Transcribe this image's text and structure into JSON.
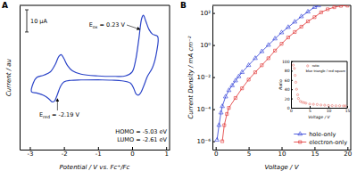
{
  "chart_data": [
    {
      "panel": "A",
      "type": "line",
      "x_label": "Potential / V vs. Fc⁺/Fc",
      "y_label": "Current / au",
      "xlim": [
        -3.3,
        1.1
      ],
      "xticks": [
        -3,
        -2,
        -1,
        0,
        1
      ],
      "ylim": [
        -32,
        33
      ],
      "tick_labels": "x",
      "scale_bar": {
        "value": 10,
        "label": "10 µA"
      },
      "series": [
        {
          "color": "#2b44c8",
          "x": [
            -1.0,
            -1.5,
            -1.8,
            -2.0,
            -2.1,
            -2.2,
            -2.28,
            -2.35,
            -2.45,
            -2.6,
            -2.8,
            -2.95,
            -2.9,
            -2.8,
            -2.6,
            -2.4,
            -2.25,
            -2.15,
            -2.08,
            -2.0,
            -1.9,
            -1.75,
            -1.5,
            -1.0,
            -0.5,
            -0.2,
            0.0,
            0.1,
            0.2,
            0.28,
            0.33,
            0.4,
            0.5,
            0.6,
            0.75,
            0.72,
            0.6,
            0.45,
            0.35,
            0.25,
            0.18,
            0.12,
            0.05,
            -0.05,
            -0.3,
            -0.6,
            -1.0
          ],
          "values": [
            -0.5,
            -0.6,
            -0.8,
            -1.5,
            -3.5,
            -7.5,
            -10.2,
            -10.5,
            -9.0,
            -7.5,
            -6.5,
            -6.0,
            -2.0,
            0.5,
            1.5,
            3.0,
            6.5,
            10.0,
            10.8,
            9.0,
            6.0,
            3.5,
            2.0,
            1.2,
            1.0,
            1.2,
            3.0,
            8.0,
            18.0,
            27.0,
            28.5,
            26.0,
            22.0,
            20.0,
            19.0,
            12.0,
            5.0,
            1.0,
            -3.0,
            -6.5,
            -7.5,
            -7.0,
            -4.5,
            -2.0,
            -1.0,
            -0.7,
            -0.5
          ]
        }
      ],
      "annotations": [
        {
          "main": "E",
          "sub": "ox",
          "rest": " = 0.23 V",
          "x": 0.23
        },
        {
          "main": "E",
          "sub": "red",
          "rest": " = -2.19 V",
          "x": -2.19
        },
        {
          "text": "HOMO = -5.03 eV"
        },
        {
          "text": "LUMO = -2.61 eV"
        }
      ]
    },
    {
      "panel": "B",
      "type": "line",
      "log": "y",
      "x_label": "Voltage / V",
      "y_label": "Current Density / mA cm⁻²",
      "xlim": [
        -0.5,
        20.5
      ],
      "xticks": [
        0,
        5,
        10,
        15,
        20
      ],
      "ylim": [
        3e-07,
        300
      ],
      "yticks": [
        {
          "value": 100,
          "label": "10²"
        },
        {
          "value": 1,
          "label": "10⁰"
        },
        {
          "value": 0.01,
          "label": "10⁻²"
        },
        {
          "value": 0.0001,
          "label": "10⁻⁴"
        },
        {
          "value": 1e-06,
          "label": "10⁻⁶"
        }
      ],
      "legend": "lower right",
      "series": [
        {
          "name": "hole-only",
          "color": "#2b3bd6",
          "marker": "triangle",
          "x": [
            0.2,
            0.5,
            0.8,
            1,
            1.5,
            2,
            2.5,
            3,
            3.5,
            4,
            5,
            6,
            7,
            8,
            9,
            10,
            11,
            12,
            13,
            14,
            15,
            15.6
          ],
          "values": [
            1.2e-06,
            1e-05,
            6e-05,
            0.00015,
            0.0006,
            0.0015,
            0.003,
            0.006,
            0.011,
            0.02,
            0.055,
            0.15,
            0.4,
            1.0,
            2.5,
            6,
            13,
            28,
            60,
            120,
            230,
            290
          ]
        },
        {
          "name": "electron-only",
          "color": "#e03030",
          "marker": "square",
          "x": [
            1.0,
            1.3,
            1.7,
            2,
            3,
            4,
            5,
            6,
            7,
            8,
            9,
            10,
            11,
            12,
            13,
            14,
            15,
            16,
            17,
            18,
            19,
            20
          ],
          "values": [
            1e-06,
            1e-05,
            5e-05,
            0.00012,
            0.0005,
            0.002,
            0.007,
            0.02,
            0.055,
            0.15,
            0.45,
            1.2,
            3,
            6.5,
            14,
            30,
            55,
            110,
            170,
            230,
            280,
            290
          ]
        }
      ]
    },
    {
      "type": "scatter",
      "x_label": "Voltage / V",
      "y_label": "Ratio",
      "xlim": [
        0,
        15
      ],
      "xticks": [
        0,
        5,
        10,
        15
      ],
      "ylim": [
        0,
        100
      ],
      "yticks": [
        0,
        20,
        40,
        60,
        80,
        100
      ],
      "legend": "upper right",
      "annotations": [
        {
          "text": "blue triangle / red square"
        }
      ],
      "series": [
        {
          "name": "ratio",
          "color": "#e8706a",
          "marker": "circle",
          "x": [
            0.6,
            0.9,
            1.1,
            1.3,
            1.5,
            1.8,
            2,
            2.5,
            3,
            3.5,
            4,
            5,
            6,
            7,
            8,
            9,
            10,
            11,
            12,
            13,
            14,
            14.5
          ],
          "values": [
            92,
            85,
            70,
            55,
            40,
            28,
            20,
            14,
            12,
            11,
            10,
            8,
            7.5,
            7,
            6,
            5.5,
            5,
            4.6,
            4.3,
            4.3,
            4,
            4
          ]
        }
      ]
    }
  ]
}
